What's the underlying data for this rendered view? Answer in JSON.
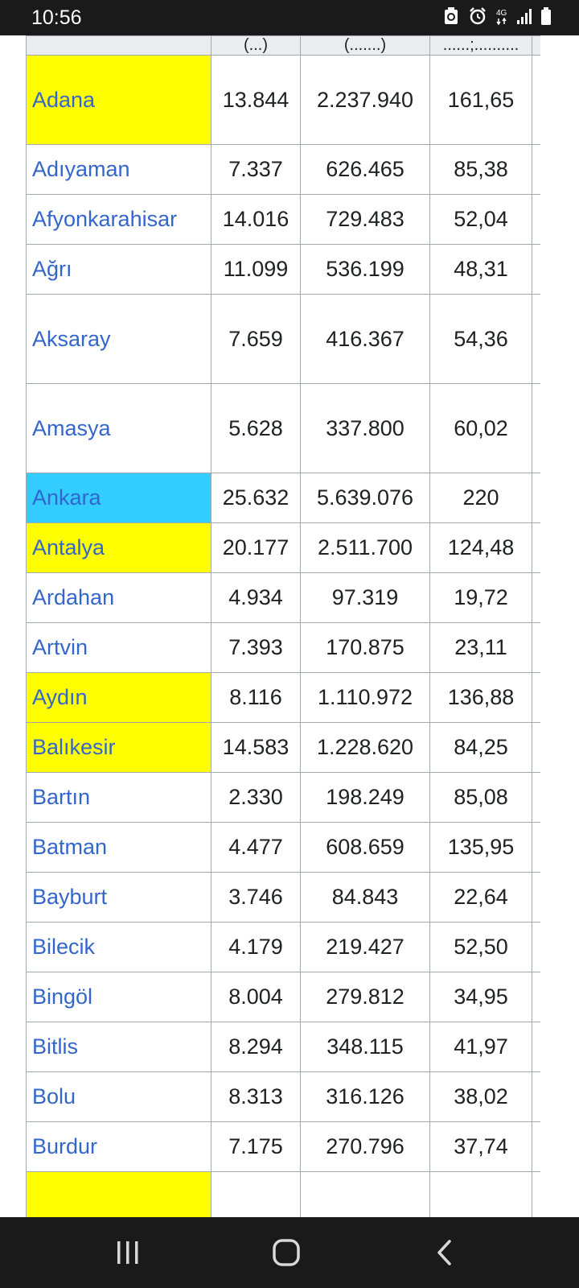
{
  "status_bar": {
    "time": "10:56",
    "network_label": "4G",
    "icons": [
      "recycle-icon",
      "alarm-icon",
      "network-4g-icon",
      "signal-icon",
      "battery-icon"
    ]
  },
  "table": {
    "header_cells": [
      "",
      "(...)",
      "(.......)",
      "......;..........",
      ""
    ],
    "rows": [
      {
        "name": "Adana",
        "area": "13.844",
        "population": "2.237.940",
        "density": "161,65",
        "highlight": "yellow",
        "height": 111
      },
      {
        "name": "Adıyaman",
        "area": "7.337",
        "population": "626.465",
        "density": "85,38",
        "highlight": "",
        "height": 62
      },
      {
        "name": "Afyonkarahisar",
        "area": "14.016",
        "population": "729.483",
        "density": "52,04",
        "highlight": "",
        "height": 62
      },
      {
        "name": "Ağrı",
        "area": "11.099",
        "population": "536.199",
        "density": "48,31",
        "highlight": "",
        "height": 62
      },
      {
        "name": "Aksaray",
        "area": "7.659",
        "population": "416.367",
        "density": "54,36",
        "highlight": "",
        "height": 111
      },
      {
        "name": "Amasya",
        "area": "5.628",
        "population": "337.800",
        "density": "60,02",
        "highlight": "",
        "height": 111
      },
      {
        "name": "Ankara",
        "area": "25.632",
        "population": "5.639.076",
        "density": "220",
        "highlight": "blue",
        "height": 62
      },
      {
        "name": "Antalya",
        "area": "20.177",
        "population": "2.511.700",
        "density": "124,48",
        "highlight": "yellow",
        "height": 62
      },
      {
        "name": "Ardahan",
        "area": "4.934",
        "population": "97.319",
        "density": "19,72",
        "highlight": "",
        "height": 62
      },
      {
        "name": "Artvin",
        "area": "7.393",
        "population": "170.875",
        "density": "23,11",
        "highlight": "",
        "height": 62
      },
      {
        "name": "Aydın",
        "area": "8.116",
        "population": "1.110.972",
        "density": "136,88",
        "highlight": "yellow",
        "height": 62
      },
      {
        "name": "Balıkesir",
        "area": "14.583",
        "population": "1.228.620",
        "density": "84,25",
        "highlight": "yellow",
        "height": 62
      },
      {
        "name": "Bartın",
        "area": "2.330",
        "population": "198.249",
        "density": "85,08",
        "highlight": "",
        "height": 62
      },
      {
        "name": "Batman",
        "area": "4.477",
        "population": "608.659",
        "density": "135,95",
        "highlight": "",
        "height": 62
      },
      {
        "name": "Bayburt",
        "area": "3.746",
        "population": "84.843",
        "density": "22,64",
        "highlight": "",
        "height": 62
      },
      {
        "name": "Bilecik",
        "area": "4.179",
        "population": "219.427",
        "density": "52,50",
        "highlight": "",
        "height": 62
      },
      {
        "name": "Bingöl",
        "area": "8.004",
        "population": "279.812",
        "density": "34,95",
        "highlight": "",
        "height": 62
      },
      {
        "name": "Bitlis",
        "area": "8.294",
        "population": "348.115",
        "density": "41,97",
        "highlight": "",
        "height": 62
      },
      {
        "name": "Bolu",
        "area": "8.313",
        "population": "316.126",
        "density": "38,02",
        "highlight": "",
        "height": 62
      },
      {
        "name": "Burdur",
        "area": "7.175",
        "population": "270.796",
        "density": "37,74",
        "highlight": "",
        "height": 62
      },
      {
        "name": "",
        "area": "",
        "population": "",
        "density": "",
        "highlight": "yellow",
        "height": 62
      }
    ]
  },
  "colors": {
    "link": "#3366cc",
    "yellow_highlight": "#ffff00",
    "blue_highlight": "#33ccff",
    "border": "#a2a9b1"
  },
  "nav_bar": {
    "icons": [
      "recent-apps-icon",
      "home-icon",
      "back-icon"
    ]
  }
}
